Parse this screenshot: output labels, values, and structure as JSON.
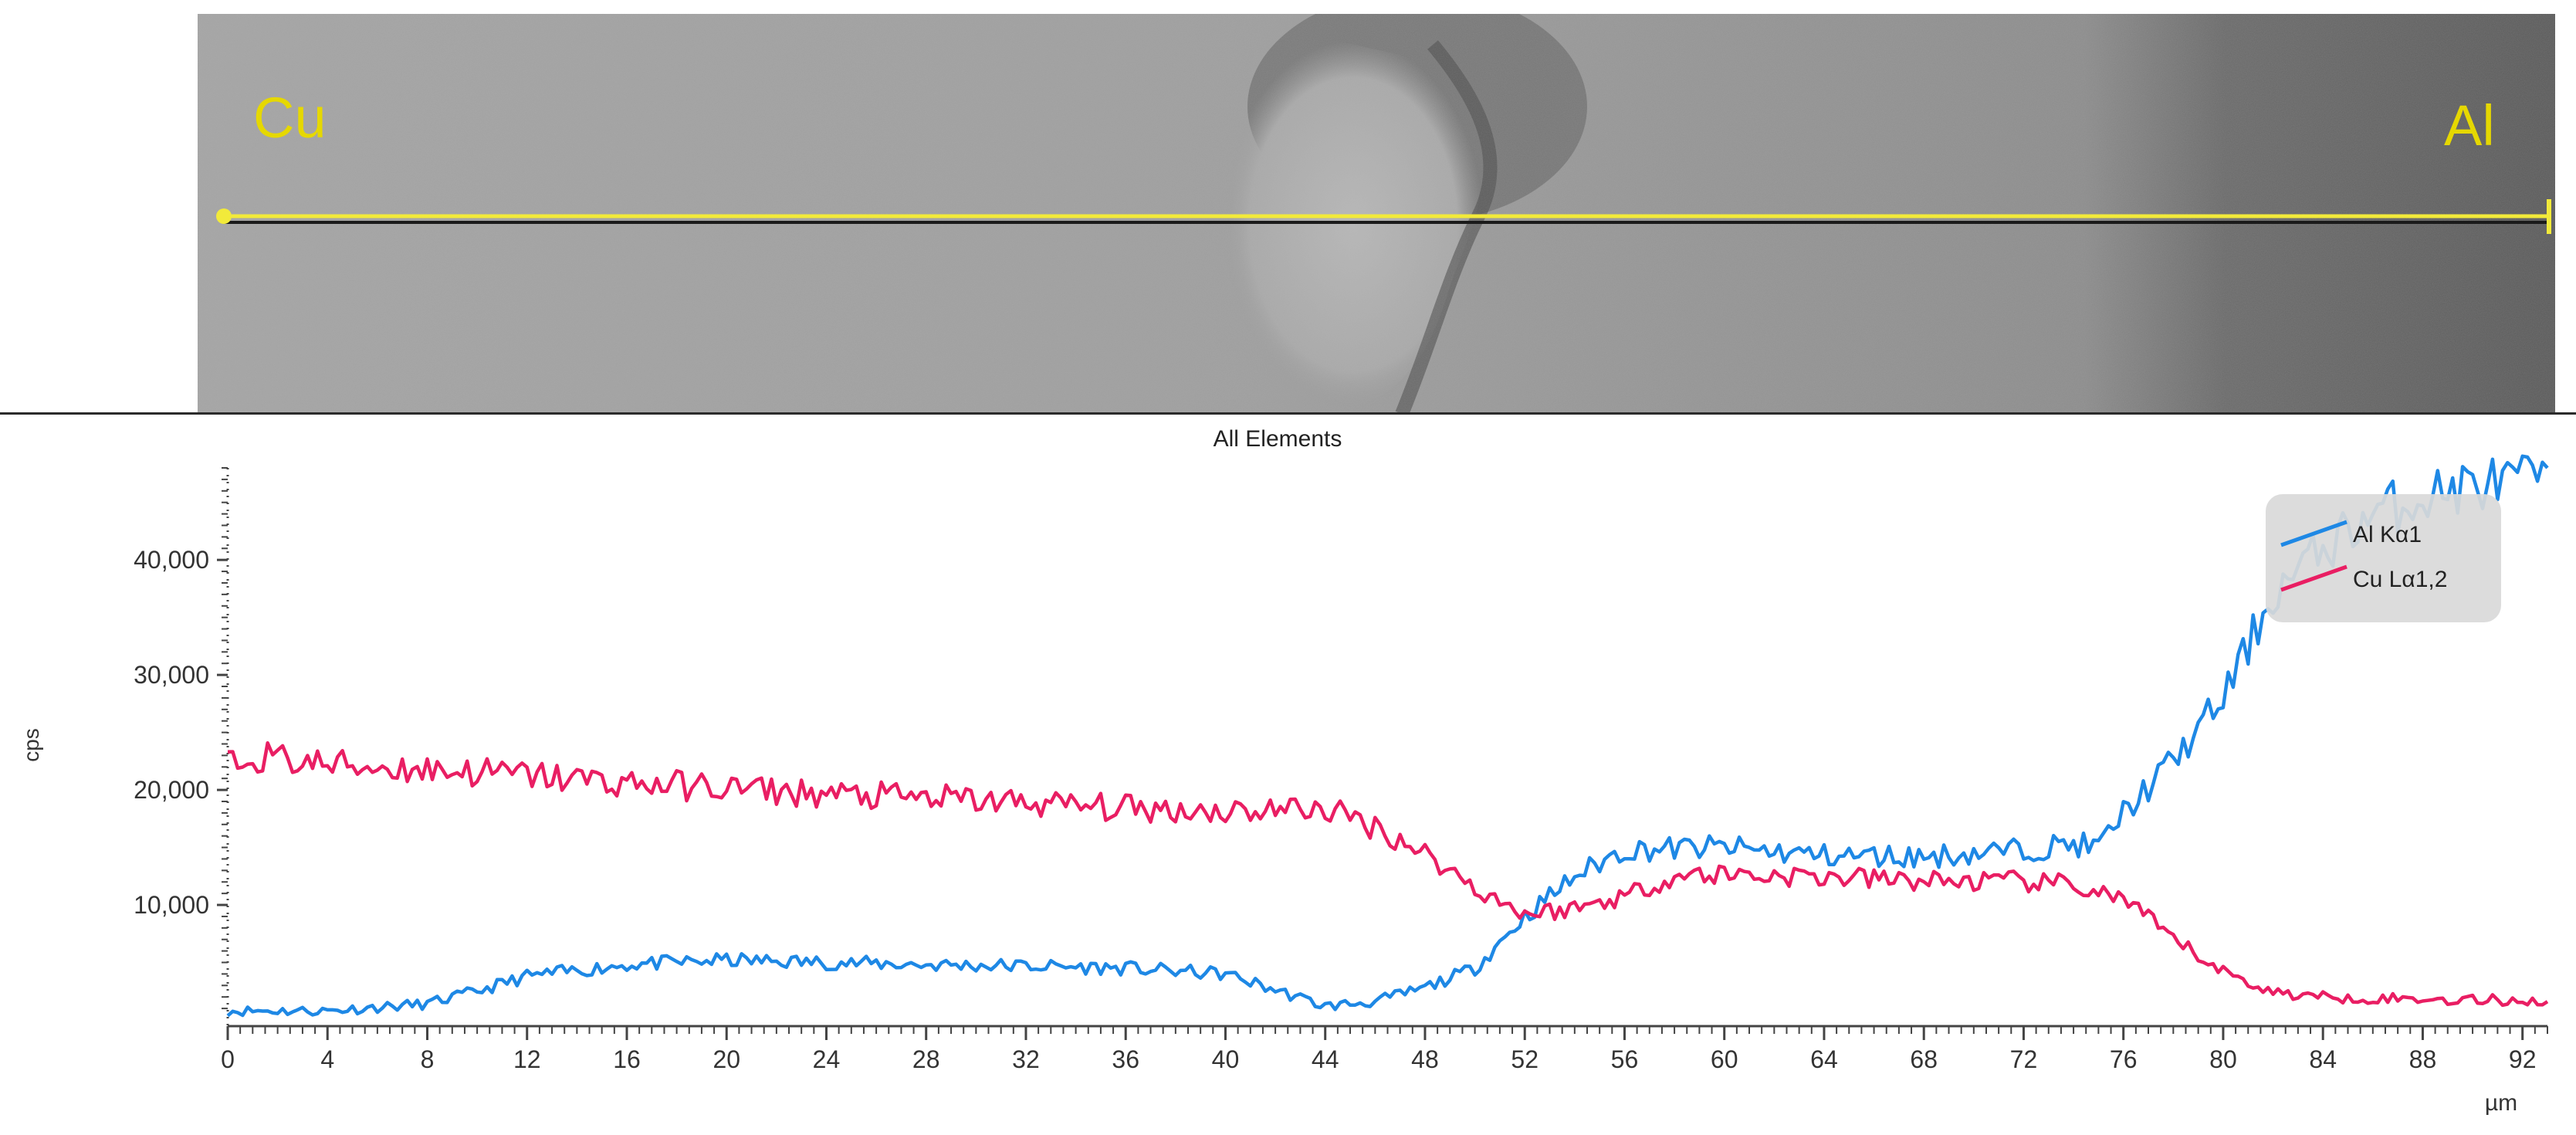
{
  "micrograph": {
    "label_left": "Cu",
    "label_right": "Al",
    "label_color": "#e6d800",
    "scan_line_color": "#f2ea3a"
  },
  "chart_data": {
    "type": "line",
    "title": "All Elements",
    "xlabel": "µm",
    "ylabel": "cps",
    "xlim": [
      0,
      93
    ],
    "ylim": [
      0,
      48000
    ],
    "x_ticks": [
      0,
      4,
      8,
      12,
      16,
      20,
      24,
      28,
      32,
      36,
      40,
      44,
      48,
      52,
      56,
      60,
      64,
      68,
      72,
      76,
      80,
      84,
      88,
      92
    ],
    "x_tick_labels": [
      "0",
      "4",
      "8",
      "12",
      "16",
      "20",
      "24",
      "28",
      "32",
      "36",
      "40",
      "44",
      "48",
      "52",
      "56",
      "60",
      "64",
      "68",
      "72",
      "76",
      "80",
      "84",
      "88",
      "92"
    ],
    "y_ticks": [
      10000,
      20000,
      30000,
      40000
    ],
    "y_tick_labels": [
      "10,000",
      "20,000",
      "30,000",
      "40,000"
    ],
    "grid": false,
    "legend_position": "top-right",
    "series": [
      {
        "name": "Al Kα1",
        "color": "#1e88e5",
        "x": [
          0,
          4,
          8,
          10,
          12,
          16,
          20,
          24,
          28,
          32,
          36,
          40,
          42,
          44,
          46,
          48,
          50,
          52,
          54,
          56,
          60,
          64,
          68,
          72,
          74,
          75,
          76,
          78,
          80,
          82,
          84,
          86,
          88,
          90,
          92,
          93
        ],
        "values": [
          800,
          800,
          1400,
          2500,
          3800,
          4800,
          5200,
          5000,
          4800,
          4700,
          4500,
          4000,
          2600,
          1200,
          1600,
          2800,
          4500,
          9000,
          12500,
          14800,
          15000,
          14300,
          14200,
          14800,
          15300,
          15000,
          18000,
          22500,
          28000,
          37000,
          41000,
          44000,
          45500,
          46500,
          46800,
          48000
        ]
      },
      {
        "name": "Cu Lα1,2",
        "color": "#e91e63",
        "x": [
          0,
          1,
          4,
          8,
          12,
          16,
          20,
          24,
          28,
          32,
          36,
          40,
          44,
          46,
          48,
          50,
          52,
          54,
          56,
          58,
          60,
          64,
          68,
          72,
          74,
          76,
          78,
          80,
          82,
          84,
          88,
          92,
          93
        ],
        "values": [
          22000,
          23000,
          22200,
          21800,
          21300,
          20600,
          20200,
          19600,
          19300,
          18900,
          18400,
          18200,
          18400,
          16800,
          14500,
          11500,
          9200,
          9700,
          10800,
          12500,
          12700,
          12400,
          12100,
          12000,
          11700,
          10500,
          7000,
          4200,
          2400,
          2000,
          1800,
          1700,
          1600
        ]
      }
    ]
  }
}
